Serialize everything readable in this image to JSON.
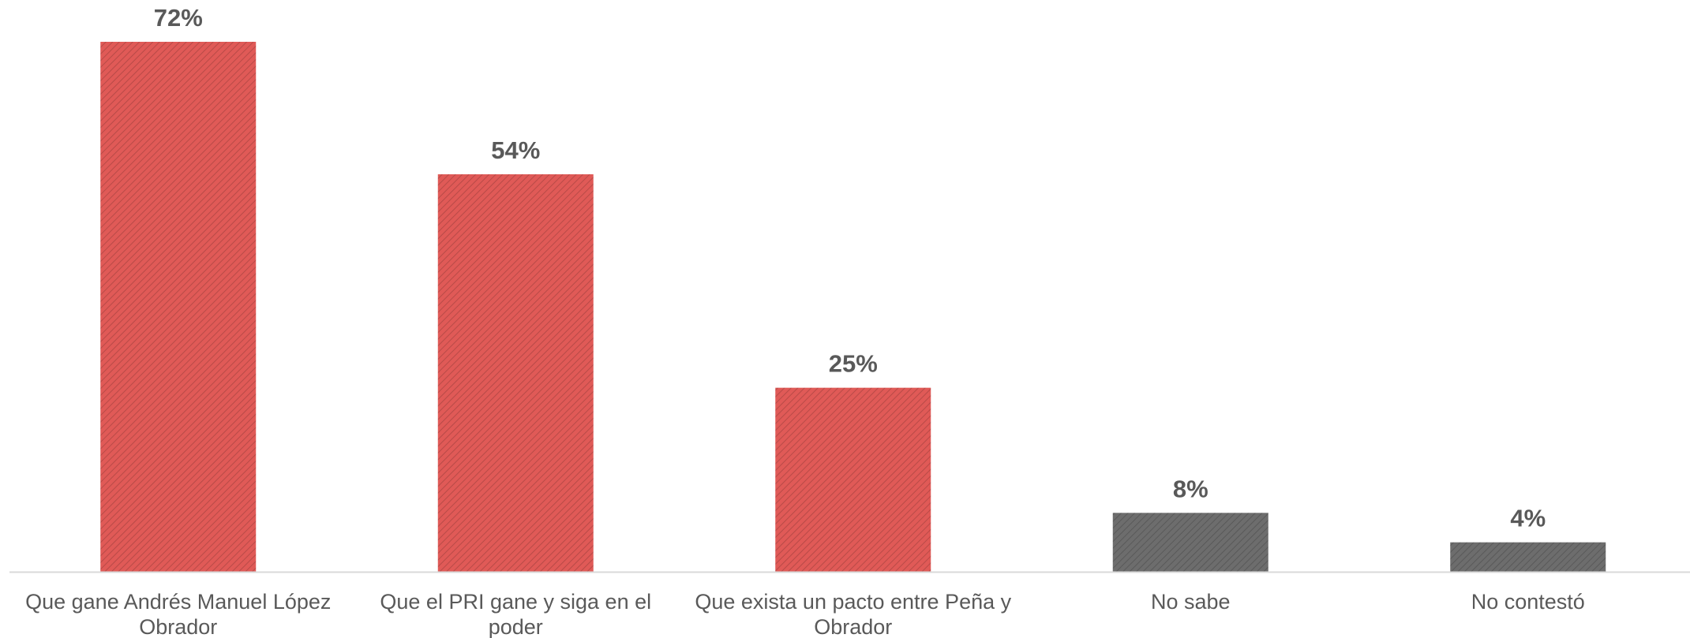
{
  "chart_data": {
    "type": "bar",
    "categories": [
      [
        "Que gane Andrés Manuel López",
        "Obrador"
      ],
      [
        "Que el PRI gane y siga en el",
        "poder"
      ],
      [
        "Que exista un pacto entre Peña y",
        "Obrador"
      ],
      [
        "No sabe"
      ],
      [
        "No contestó"
      ]
    ],
    "values": [
      72,
      54,
      25,
      8,
      4
    ],
    "value_labels": [
      "72%",
      "54%",
      "25%",
      "8%",
      "4%"
    ],
    "bar_colors": [
      "#e05a57",
      "#e05a57",
      "#e05a57",
      "#6d6d6d",
      "#6d6d6d"
    ],
    "hatch": "diagonal",
    "title": "",
    "xlabel": "",
    "ylabel": "",
    "ylim": [
      0,
      72
    ],
    "grid": false,
    "legend": "none",
    "axis_color": "#d9d9d9",
    "text_color": "#595959"
  }
}
